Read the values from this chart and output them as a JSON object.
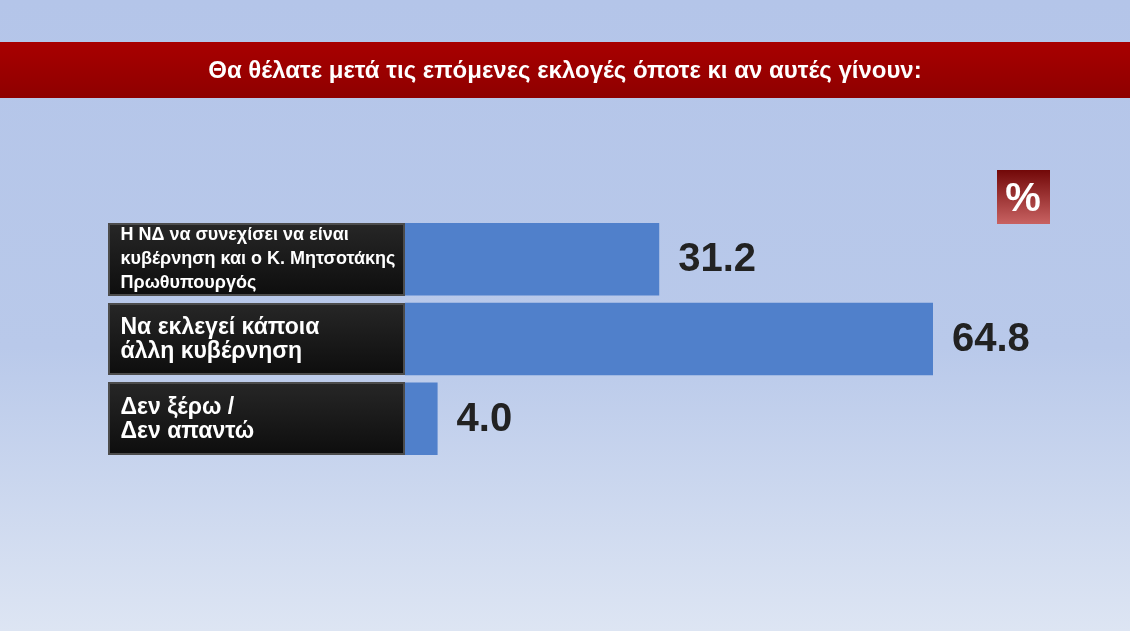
{
  "chart_data": {
    "type": "bar",
    "title": "Θα θέλατε μετά τις επόμενες εκλογές όποτε κι αν αυτές γίνουν:",
    "categories": [
      "Η ΝΔ να συνεχίσει να είναι κυβέρνηση και ο Κ. Μητσοτάκης Πρωθυπουργός",
      "Να εκλεγεί κάποια άλλη κυβέρνηση",
      "Δεν ξέρω / Δεν απαντώ"
    ],
    "values": [
      31.2,
      64.8,
      4.0
    ],
    "value_labels": [
      "31.2",
      "64.8",
      "4.0"
    ],
    "orientation": "horizontal",
    "color": "#5080cb",
    "annotations": [
      "%"
    ]
  }
}
